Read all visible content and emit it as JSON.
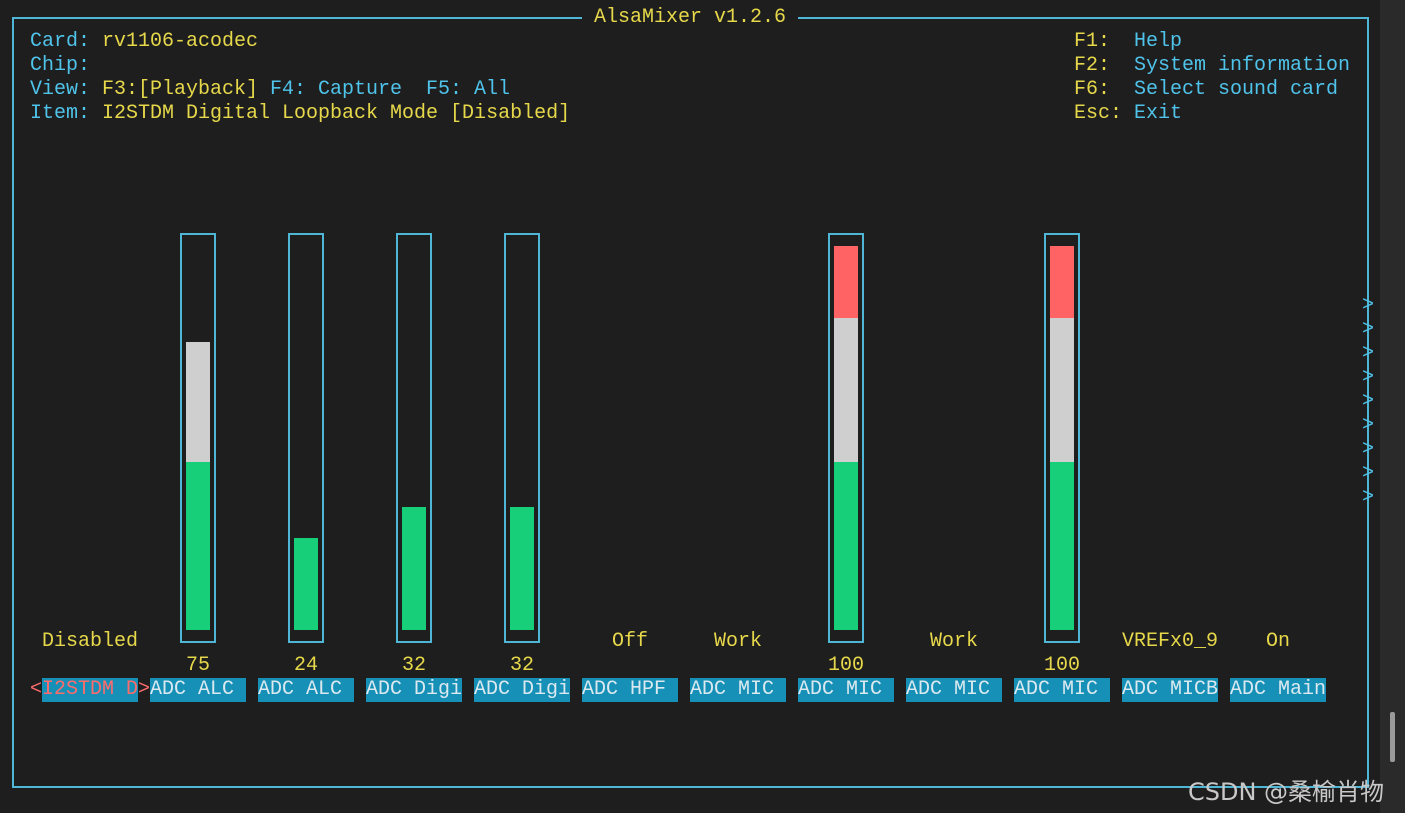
{
  "title": "AlsaMixer v1.2.6",
  "info": [
    {
      "label": "Card:",
      "value": "rv1106-acodec"
    },
    {
      "label": "Chip:"
    },
    {
      "label": "View:",
      "value": "F3:[Playback]",
      "rest": "F4: Capture  F5: All"
    },
    {
      "label": "Item:",
      "value": "I2STDM Digital Loopback Mode [Disabled]"
    }
  ],
  "keys": [
    {
      "key": "F1:",
      "action": "Help"
    },
    {
      "key": "F2:",
      "action": "System information"
    },
    {
      "key": "F6:",
      "action": "Select sound card"
    },
    {
      "key": "Esc:",
      "action": "Exit"
    }
  ],
  "level_lim": [
    0,
    100
  ],
  "selected_markers": [
    "<",
    ">"
  ],
  "controls": [
    {
      "name": "I2STDM D",
      "value_text": "Disabled"
    },
    {
      "name": "ADC ALC",
      "level": 75
    },
    {
      "name": "ADC ALC",
      "level": 24
    },
    {
      "name": "ADC Digi",
      "level": 32
    },
    {
      "name": "ADC Digi",
      "level": 32
    },
    {
      "name": "ADC HPF",
      "value_text": "Off"
    },
    {
      "name": "ADC MIC",
      "value_text": "Work"
    },
    {
      "name": "ADC MIC",
      "level": 100
    },
    {
      "name": "ADC MIC",
      "value_text": "Work"
    },
    {
      "name": "ADC MIC",
      "level": 100
    },
    {
      "name": "ADC MICB",
      "value_text": "VREFx0_9"
    },
    {
      "name": "ADC Main",
      "value_text": "On"
    }
  ],
  "scroll_arrows": [
    ">",
    ">",
    ">",
    ">",
    ">",
    ">",
    ">",
    ">",
    ">"
  ],
  "watermark": "CSDN @桑榆肖物"
}
